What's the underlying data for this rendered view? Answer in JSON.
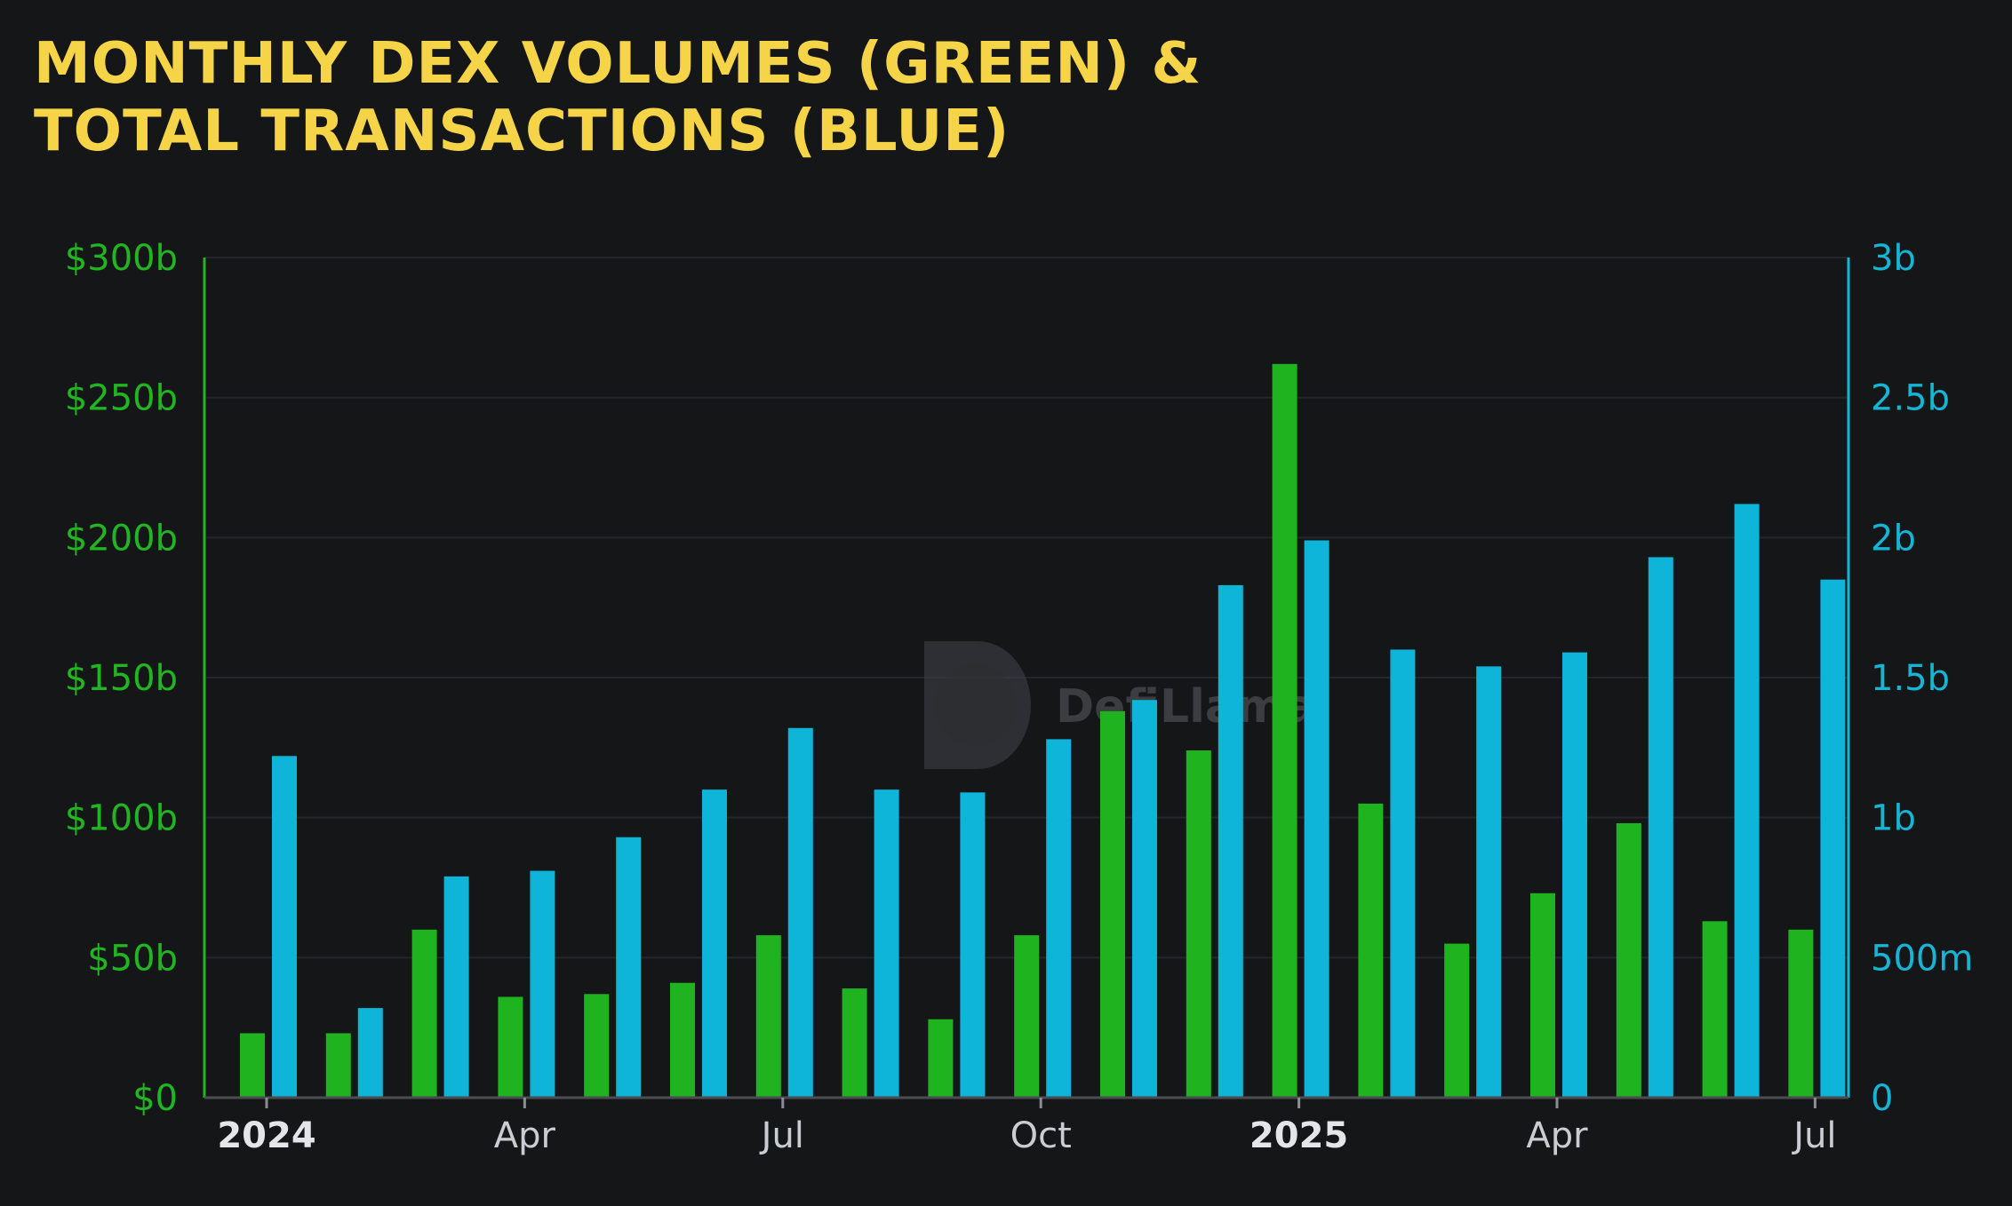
{
  "title": "MONTHLY DEX VOLUMES (GREEN) &\nTOTAL TRANSACTIONS (BLUE)",
  "watermark": "DefiLlama",
  "chart_data": {
    "type": "bar",
    "title": "MONTHLY DEX VOLUMES (GREEN) & TOTAL TRANSACTIONS (BLUE)",
    "grid": true,
    "legend": "none",
    "x_tick_labels": [
      "2024",
      "Apr",
      "Jul",
      "Oct",
      "2025",
      "Apr",
      "Jul"
    ],
    "x_tick_month_index": [
      0,
      3,
      6,
      9,
      12,
      15,
      18
    ],
    "categories": [
      "Jan 2024",
      "Feb 2024",
      "Mar 2024",
      "Apr 2024",
      "May 2024",
      "Jun 2024",
      "Jul 2024",
      "Aug 2024",
      "Sep 2024",
      "Oct 2024",
      "Nov 2024",
      "Dec 2024",
      "Jan 2025",
      "Feb 2025",
      "Mar 2025",
      "Apr 2025",
      "May 2025",
      "Jun 2025",
      "Jul 2025"
    ],
    "left_axis": {
      "ticks": [
        0,
        50,
        100,
        150,
        200,
        250,
        300
      ],
      "tick_labels": [
        "$0",
        "$50b",
        "$100b",
        "$150b",
        "$200b",
        "$250b",
        "$300b"
      ],
      "range": [
        0,
        300
      ],
      "unit": "billion USD",
      "color": "#22b522"
    },
    "right_axis": {
      "ticks": [
        0,
        0.5,
        1,
        1.5,
        2,
        2.5,
        3
      ],
      "tick_labels": [
        "0",
        "500m",
        "1b",
        "1.5b",
        "2b",
        "2.5b",
        "3b"
      ],
      "range": [
        0,
        3
      ],
      "unit": "billion transactions",
      "color": "#16b5d6"
    },
    "series": [
      {
        "axis": "left",
        "color": "#1fb31f",
        "values": [
          23,
          23,
          60,
          36,
          37,
          41,
          58,
          39,
          28,
          58,
          138,
          124,
          262,
          105,
          55,
          73,
          98,
          63,
          60
        ]
      },
      {
        "axis": "right",
        "color": "#0fb4d9",
        "values": [
          1.22,
          0.32,
          0.79,
          0.81,
          0.93,
          1.1,
          1.32,
          1.1,
          1.09,
          1.28,
          1.42,
          1.83,
          1.99,
          1.6,
          1.54,
          1.59,
          1.93,
          2.12,
          1.85
        ]
      }
    ]
  }
}
